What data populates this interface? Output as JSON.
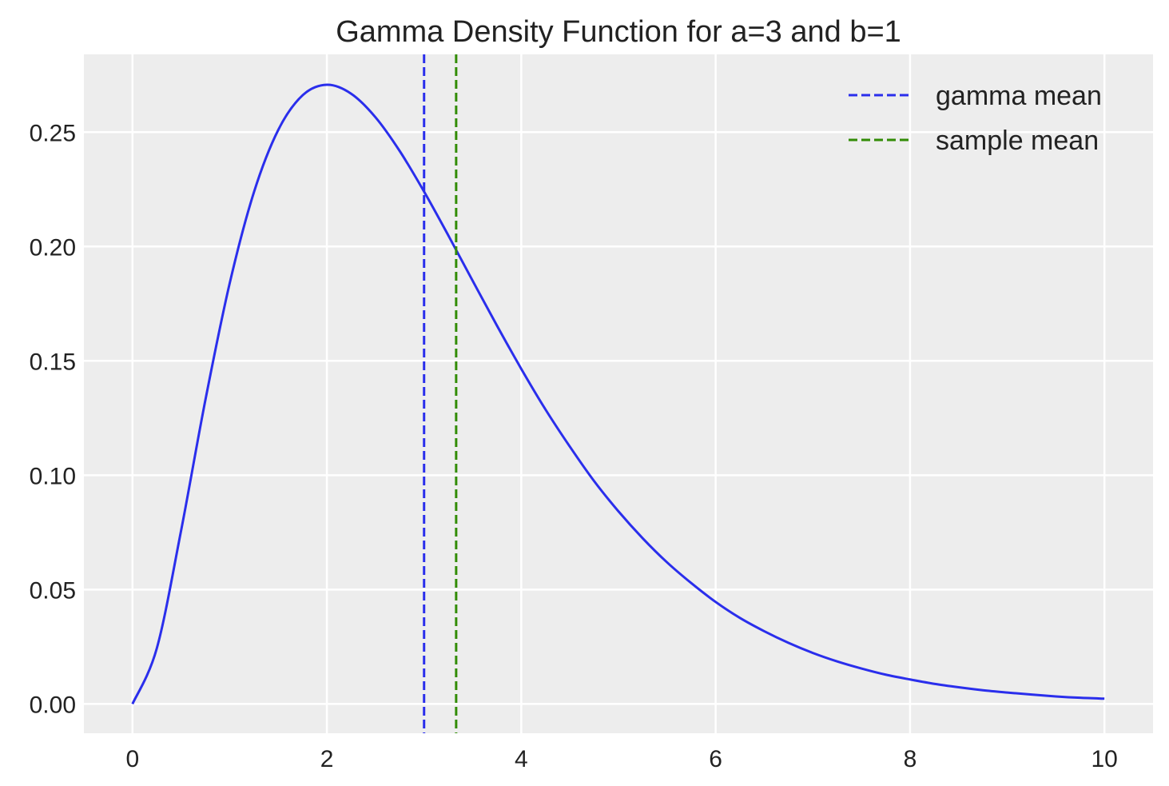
{
  "chart_data": {
    "type": "line",
    "title": "Gamma Density Function for a=3 and b=1",
    "xlabel": "",
    "ylabel": "",
    "xlim": [
      -0.5,
      10.5
    ],
    "ylim": [
      -0.0128,
      0.284
    ],
    "grid": true,
    "legend_position": "top-right",
    "background_color": "#ededed",
    "x_ticks": [
      0,
      2,
      4,
      6,
      8,
      10
    ],
    "x_tick_labels": [
      "0",
      "2",
      "4",
      "6",
      "8",
      "10"
    ],
    "y_ticks": [
      0.0,
      0.05,
      0.1,
      0.15,
      0.2,
      0.25
    ],
    "y_tick_labels": [
      "0.00",
      "0.05",
      "0.10",
      "0.15",
      "0.20",
      "0.25"
    ],
    "series": [
      {
        "kind": "curve",
        "color": "#2a2eec",
        "x": [
          0,
          0.25,
          0.5,
          0.75,
          1,
          1.25,
          1.5,
          1.75,
          2,
          2.25,
          2.5,
          2.75,
          3,
          3.25,
          3.5,
          3.75,
          4,
          4.25,
          4.5,
          4.75,
          5,
          5.25,
          5.5,
          5.75,
          6,
          6.25,
          6.5,
          6.75,
          7,
          7.25,
          7.5,
          7.75,
          8,
          8.25,
          8.5,
          8.75,
          9,
          9.25,
          9.5,
          9.75,
          10
        ],
        "y": [
          0.0,
          0.0243,
          0.0758,
          0.1329,
          0.1839,
          0.2238,
          0.251,
          0.2661,
          0.2707,
          0.2668,
          0.2565,
          0.2417,
          0.224,
          0.2048,
          0.185,
          0.1654,
          0.1465,
          0.1287,
          0.1125,
          0.0974,
          0.0842,
          0.0724,
          0.0619,
          0.0528,
          0.0446,
          0.0376,
          0.0318,
          0.0267,
          0.0223,
          0.0186,
          0.0155,
          0.0128,
          0.0107,
          0.0088,
          0.0073,
          0.006,
          0.005,
          0.0041,
          0.0033,
          0.0027,
          0.0023
        ]
      },
      {
        "kind": "vline",
        "name": "gamma mean",
        "x": 3.0,
        "color": "#2a2eec",
        "dashed": true
      },
      {
        "kind": "vline",
        "name": "sample mean",
        "x": 3.33,
        "color": "#328c06",
        "dashed": true
      }
    ]
  }
}
